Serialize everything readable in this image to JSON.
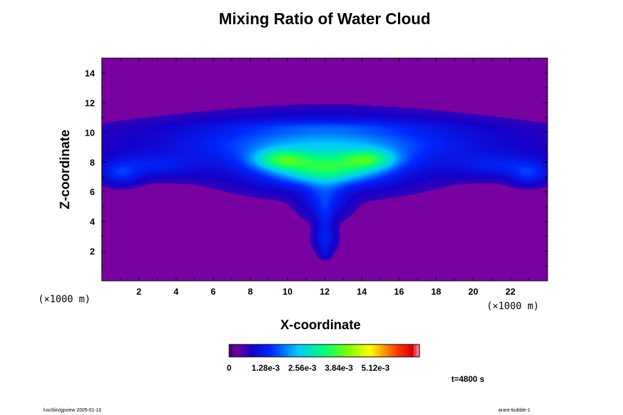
{
  "chart_data": {
    "type": "heatmap",
    "title": "Mixing Ratio of Water Cloud",
    "xlabel": "X-coordinate",
    "ylabel": "Z-coordinate",
    "x_units": "(×1000 m)",
    "xlim": [
      0,
      24
    ],
    "ylim": [
      0,
      15
    ],
    "x_ticks": [
      2,
      4,
      6,
      8,
      10,
      12,
      14,
      16,
      18,
      20,
      22
    ],
    "y_ticks": [
      2,
      4,
      6,
      8,
      10,
      12,
      14
    ],
    "colorbar": {
      "range": [
        0,
        0.00666
      ],
      "tick_values": [
        0,
        0.00128,
        0.00256,
        0.00384,
        0.00512
      ],
      "tick_labels": [
        "0",
        "1.28e-3",
        "2.56e-3",
        "3.84e-3",
        "5.12e-3"
      ]
    },
    "background_value": 0,
    "cloud_features": [
      {
        "x": 12,
        "z": 9.4,
        "sx": 6.8,
        "sz": 1.0,
        "value": 0.0009
      },
      {
        "x": 12,
        "z": 8.5,
        "sx": 3.8,
        "sz": 1.4,
        "value": 0.0012
      },
      {
        "x": 12,
        "z": 7.5,
        "sx": 2.0,
        "sz": 0.7,
        "value": 0.0021
      },
      {
        "x": 9.6,
        "z": 8.2,
        "sx": 1.0,
        "sz": 0.45,
        "value": 0.0016
      },
      {
        "x": 14.4,
        "z": 8.2,
        "sx": 1.0,
        "sz": 0.45,
        "value": 0.0016
      },
      {
        "x": 12,
        "z": 5.6,
        "sx": 0.8,
        "sz": 0.9,
        "value": 0.0009
      },
      {
        "x": 12,
        "z": 4.2,
        "sx": 0.3,
        "sz": 0.8,
        "value": 0.0006
      },
      {
        "x": 12,
        "z": 2.8,
        "sx": 0.4,
        "sz": 0.55,
        "value": 0.0007
      },
      {
        "x": 12,
        "z": 1.9,
        "sx": 0.22,
        "sz": 0.3,
        "value": 0.0004
      },
      {
        "x": 2.5,
        "z": 7.8,
        "sx": 1.8,
        "sz": 0.55,
        "value": 0.0007
      },
      {
        "x": 1.0,
        "z": 7.2,
        "sx": 0.7,
        "sz": 0.5,
        "value": 0.0008
      },
      {
        "x": 21.5,
        "z": 7.8,
        "sx": 1.8,
        "sz": 0.55,
        "value": 0.0007
      },
      {
        "x": 23.0,
        "z": 7.2,
        "sx": 0.7,
        "sz": 0.5,
        "value": 0.0008
      },
      {
        "x": 12,
        "z": 10.4,
        "sx": 4.5,
        "sz": 0.25,
        "value": 0.0003
      }
    ],
    "time_label": "t=4800 s"
  },
  "footer": {
    "left": "/usr/bin/gpview 2005-01-10",
    "right": "arare-bubble-1"
  }
}
